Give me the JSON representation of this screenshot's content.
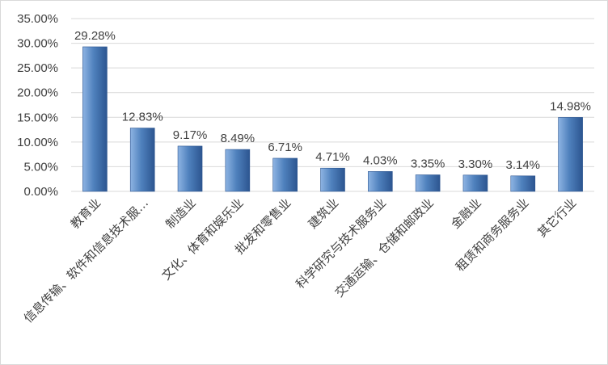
{
  "colors": {
    "bar_light": "#8eb4e3",
    "bar_mid": "#4f81bd",
    "bar_dark": "#2c5590",
    "grid": "#d9d9d9",
    "text": "#404040"
  },
  "chart_data": {
    "type": "bar",
    "title": "",
    "xlabel": "",
    "ylabel": "",
    "ylim": [
      0,
      35
    ],
    "y_ticks": [
      "0.00%",
      "5.00%",
      "10.00%",
      "15.00%",
      "20.00%",
      "25.00%",
      "30.00%",
      "35.00%"
    ],
    "grid": true,
    "legend": "none",
    "categories": [
      "教育业",
      "信息传输、软件和信息技术服…",
      "制造业",
      "文化、体育和娱乐业",
      "批发和零售业",
      "建筑业",
      "科学研究与技术服务业",
      "交通运输、仓储和邮政业",
      "金融业",
      "租赁和商务服务业",
      "其它行业"
    ],
    "values": [
      29.28,
      12.83,
      9.17,
      8.49,
      6.71,
      4.71,
      4.03,
      3.35,
      3.3,
      3.14,
      14.98
    ],
    "value_labels": [
      "29.28%",
      "12.83%",
      "9.17%",
      "8.49%",
      "6.71%",
      "4.71%",
      "4.03%",
      "3.35%",
      "3.30%",
      "3.14%",
      "14.98%"
    ]
  }
}
